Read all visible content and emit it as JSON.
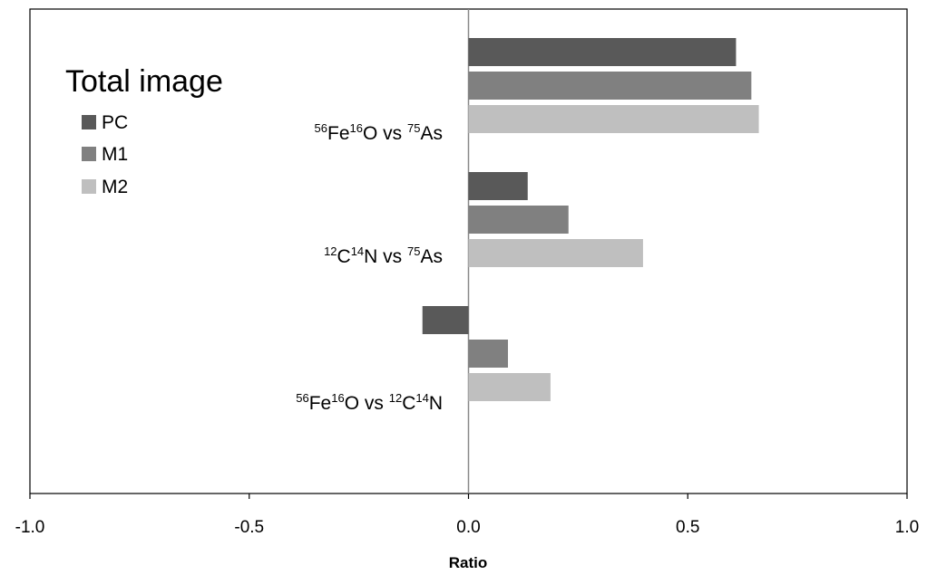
{
  "chart_data": {
    "type": "bar",
    "orientation": "horizontal",
    "legend_title": "Total image",
    "legend_placement": "top-left",
    "xlabel": "Ratio",
    "xlim": [
      -1.0,
      1.0
    ],
    "xticks": [
      "-1.0",
      "-0.5",
      "0.0",
      "0.5",
      "1.0"
    ],
    "grid": false,
    "categories": [
      {
        "id": "fe-as",
        "parts": [
          [
            "56",
            "sup"
          ],
          [
            "Fe",
            ""
          ],
          [
            "16",
            "sup"
          ],
          [
            "O vs ",
            ""
          ],
          [
            "75",
            "sup"
          ],
          [
            "As",
            ""
          ]
        ]
      },
      {
        "id": "cn-as",
        "parts": [
          [
            "12",
            "sup"
          ],
          [
            "C",
            ""
          ],
          [
            "14",
            "sup"
          ],
          [
            "N vs ",
            ""
          ],
          [
            "75",
            "sup"
          ],
          [
            "As",
            ""
          ]
        ]
      },
      {
        "id": "fe-cn",
        "parts": [
          [
            "56",
            "sup"
          ],
          [
            "Fe",
            ""
          ],
          [
            "16",
            "sup"
          ],
          [
            "O vs ",
            ""
          ],
          [
            "12",
            "sup"
          ],
          [
            "C",
            ""
          ],
          [
            "14",
            "sup"
          ],
          [
            "N",
            ""
          ]
        ]
      }
    ],
    "series": [
      {
        "name": "PC",
        "color": "#595959",
        "values": [
          0.61,
          0.135,
          -0.105
        ]
      },
      {
        "name": "M1",
        "color": "#808080",
        "values": [
          0.645,
          0.228,
          0.09
        ]
      },
      {
        "name": "M2",
        "color": "#bfbfbf",
        "values": [
          0.662,
          0.398,
          0.187
        ]
      }
    ]
  }
}
